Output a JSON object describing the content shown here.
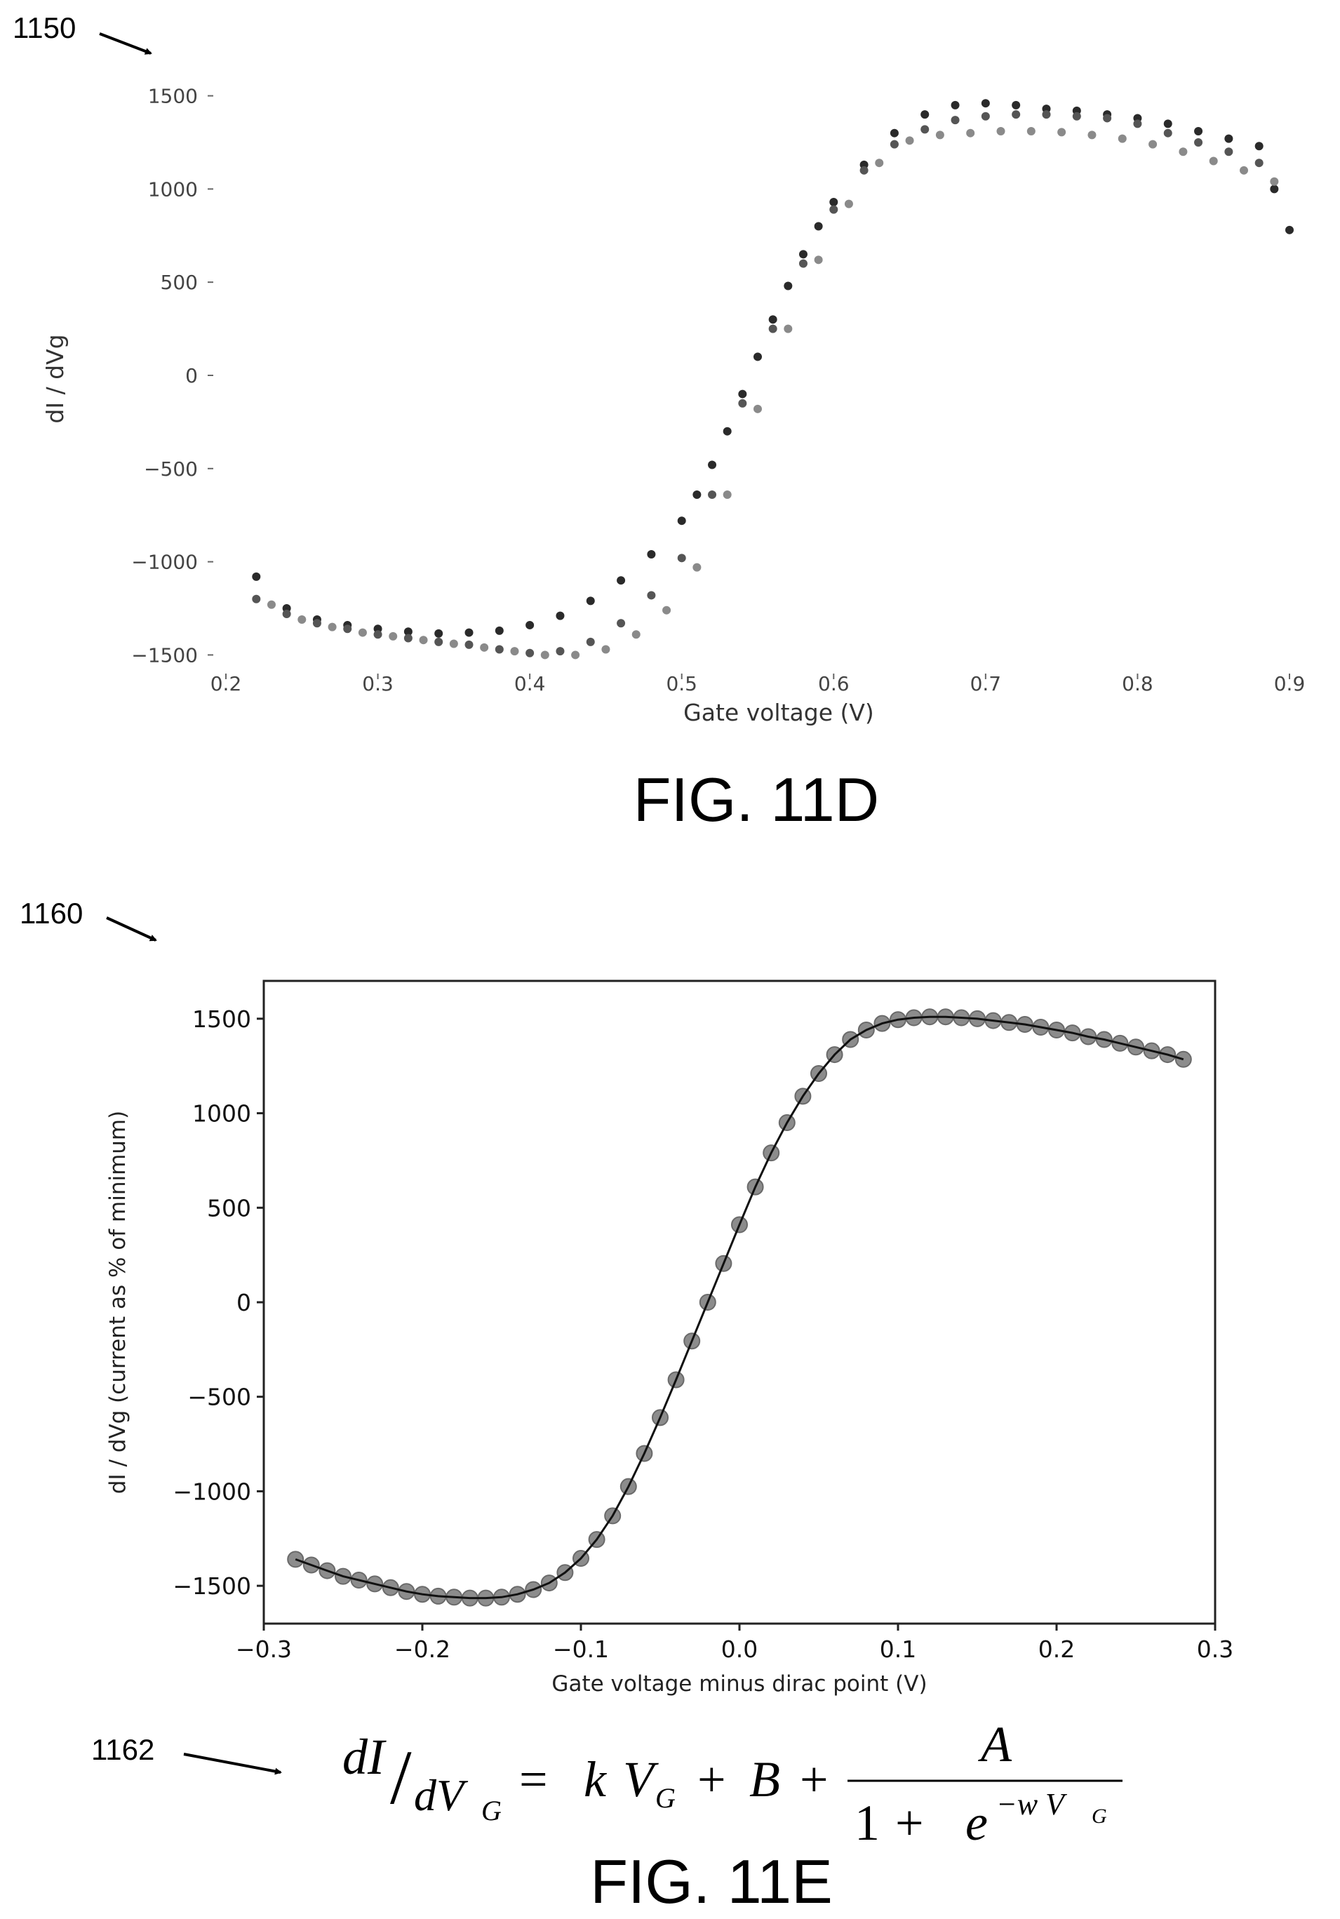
{
  "labels": {
    "ref_11d": "1150",
    "fig_11d": "FIG. 11D",
    "ref_11e": "1160",
    "fig_11e": "FIG. 11E",
    "ref_eq": "1162"
  },
  "equation": {
    "lhs_num": "dI",
    "slash": "/",
    "lhs_den": "dV",
    "lhs_den_sub": "G",
    "equals": "=",
    "k": "k",
    "v": "V",
    "v_sub": "G",
    "plus1": "+",
    "b": "B",
    "plus2": "+",
    "numerator": "A",
    "den_one": "1",
    "den_plus": "+",
    "den_e": "e",
    "exp": "−w V",
    "exp_sub": "G"
  },
  "chart_data": [
    {
      "id": "fig-11d",
      "type": "scatter",
      "xlabel": "Gate voltage (V)",
      "ylabel": "dI / dVg",
      "xlim": [
        0.2,
        0.9
      ],
      "ylim": [
        -1600,
        1600
      ],
      "xticks": [
        "0.2",
        "0.3",
        "0.4",
        "0.5",
        "0.6",
        "0.7",
        "0.8",
        "0.9"
      ],
      "yticks": [
        "−1500",
        "−1000",
        "−500",
        "0",
        "500",
        "1000",
        "1500"
      ],
      "frame": false,
      "grid": false,
      "series": [
        {
          "color": "#2a2a2a",
          "x": [
            0.22,
            0.24,
            0.26,
            0.28,
            0.3,
            0.32,
            0.34,
            0.36,
            0.38,
            0.4,
            0.42,
            0.44,
            0.46,
            0.48,
            0.5,
            0.51,
            0.52,
            0.53,
            0.54,
            0.55,
            0.56,
            0.57,
            0.58,
            0.59,
            0.6,
            0.62,
            0.64,
            0.66,
            0.68,
            0.7,
            0.72,
            0.74,
            0.76,
            0.78,
            0.8,
            0.82,
            0.84,
            0.86,
            0.88,
            0.89,
            0.9
          ],
          "y": [
            -1080,
            -1250,
            -1310,
            -1340,
            -1360,
            -1375,
            -1385,
            -1380,
            -1370,
            -1340,
            -1290,
            -1210,
            -1100,
            -960,
            -780,
            -640,
            -480,
            -300,
            -100,
            100,
            300,
            480,
            650,
            800,
            930,
            1130,
            1300,
            1400,
            1450,
            1460,
            1450,
            1430,
            1420,
            1400,
            1380,
            1350,
            1310,
            1270,
            1230,
            1000,
            780
          ]
        },
        {
          "color": "#555555",
          "x": [
            0.22,
            0.24,
            0.26,
            0.28,
            0.3,
            0.32,
            0.34,
            0.36,
            0.38,
            0.4,
            0.42,
            0.44,
            0.46,
            0.48,
            0.5,
            0.52,
            0.54,
            0.56,
            0.58,
            0.6,
            0.62,
            0.64,
            0.66,
            0.68,
            0.7,
            0.72,
            0.74,
            0.76,
            0.78,
            0.8,
            0.82,
            0.84,
            0.86,
            0.88
          ],
          "y": [
            -1200,
            -1280,
            -1330,
            -1360,
            -1390,
            -1410,
            -1430,
            -1445,
            -1470,
            -1490,
            -1480,
            -1430,
            -1330,
            -1180,
            -980,
            -640,
            -150,
            250,
            600,
            890,
            1100,
            1240,
            1320,
            1370,
            1390,
            1400,
            1400,
            1390,
            1380,
            1350,
            1300,
            1250,
            1200,
            1140
          ]
        },
        {
          "color": "#8a8a8a",
          "x": [
            0.23,
            0.25,
            0.27,
            0.29,
            0.31,
            0.33,
            0.35,
            0.37,
            0.39,
            0.41,
            0.43,
            0.45,
            0.47,
            0.49,
            0.51,
            0.53,
            0.55,
            0.57,
            0.59,
            0.61,
            0.63,
            0.65,
            0.67,
            0.69,
            0.71,
            0.73,
            0.75,
            0.77,
            0.79,
            0.81,
            0.83,
            0.85,
            0.87,
            0.89
          ],
          "y": [
            -1230,
            -1310,
            -1350,
            -1380,
            -1400,
            -1420,
            -1440,
            -1460,
            -1480,
            -1500,
            -1500,
            -1470,
            -1390,
            -1260,
            -1030,
            -640,
            -180,
            250,
            620,
            920,
            1140,
            1260,
            1290,
            1300,
            1310,
            1310,
            1305,
            1290,
            1270,
            1240,
            1200,
            1150,
            1100,
            1040
          ]
        }
      ]
    },
    {
      "id": "fig-11e",
      "type": "scatter",
      "xlabel": "Gate voltage minus dirac point (V)",
      "ylabel": "dI / dVg (current as % of minimum)",
      "xlim": [
        -0.3,
        0.3
      ],
      "ylim": [
        -1700,
        1700
      ],
      "xticks": [
        "−0.3",
        "−0.2",
        "−0.1",
        "0.0",
        "0.1",
        "0.2",
        "0.3"
      ],
      "yticks": [
        "−1500",
        "−1000",
        "−500",
        "0",
        "500",
        "1000",
        "1500"
      ],
      "frame": true,
      "grid": false,
      "fit_line": true,
      "x": [
        -0.28,
        -0.27,
        -0.26,
        -0.25,
        -0.24,
        -0.23,
        -0.22,
        -0.21,
        -0.2,
        -0.19,
        -0.18,
        -0.17,
        -0.16,
        -0.15,
        -0.14,
        -0.13,
        -0.12,
        -0.11,
        -0.1,
        -0.09,
        -0.08,
        -0.07,
        -0.06,
        -0.05,
        -0.04,
        -0.03,
        -0.02,
        -0.01,
        0.0,
        0.01,
        0.02,
        0.03,
        0.04,
        0.05,
        0.06,
        0.07,
        0.08,
        0.09,
        0.1,
        0.11,
        0.12,
        0.13,
        0.14,
        0.15,
        0.16,
        0.17,
        0.18,
        0.19,
        0.2,
        0.21,
        0.22,
        0.23,
        0.24,
        0.25,
        0.26,
        0.27,
        0.28
      ],
      "y": [
        -1360,
        -1390,
        -1420,
        -1450,
        -1470,
        -1490,
        -1510,
        -1530,
        -1545,
        -1555,
        -1560,
        -1565,
        -1565,
        -1560,
        -1545,
        -1520,
        -1485,
        -1430,
        -1355,
        -1255,
        -1130,
        -975,
        -800,
        -610,
        -410,
        -205,
        0,
        205,
        410,
        610,
        790,
        950,
        1090,
        1210,
        1310,
        1390,
        1440,
        1475,
        1495,
        1505,
        1510,
        1510,
        1505,
        1500,
        1490,
        1480,
        1470,
        1455,
        1440,
        1425,
        1405,
        1390,
        1370,
        1350,
        1330,
        1310,
        1285
      ]
    }
  ]
}
